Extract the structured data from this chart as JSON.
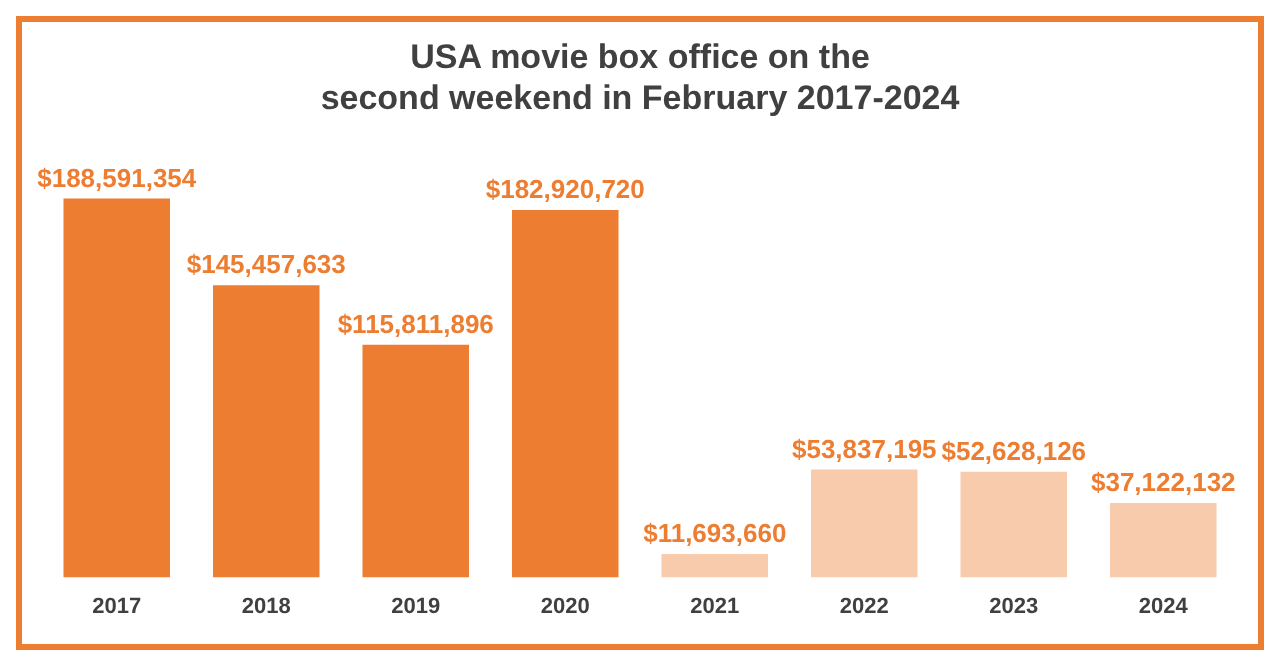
{
  "chart_data": {
    "type": "bar",
    "title": "USA movie box office on the\nsecond weekend in February 2017-2024",
    "categories": [
      "2017",
      "2018",
      "2019",
      "2020",
      "2021",
      "2022",
      "2023",
      "2024"
    ],
    "values": [
      188591354,
      145457633,
      115811896,
      182920720,
      11693660,
      53837195,
      52628126,
      37122132
    ],
    "colors": [
      "#ed7d31",
      "#ed7d31",
      "#ed7d31",
      "#ed7d31",
      "#f8cbad",
      "#f8cbad",
      "#f8cbad",
      "#f8cbad"
    ],
    "value_labels": [
      "$188,591,354",
      "$145,457,633",
      "$115,811,896",
      "$182,920,720",
      "$11,693,660",
      "$53,837,195",
      "$52,628,126",
      "$37,122,132"
    ],
    "grid": false,
    "legend": false
  }
}
